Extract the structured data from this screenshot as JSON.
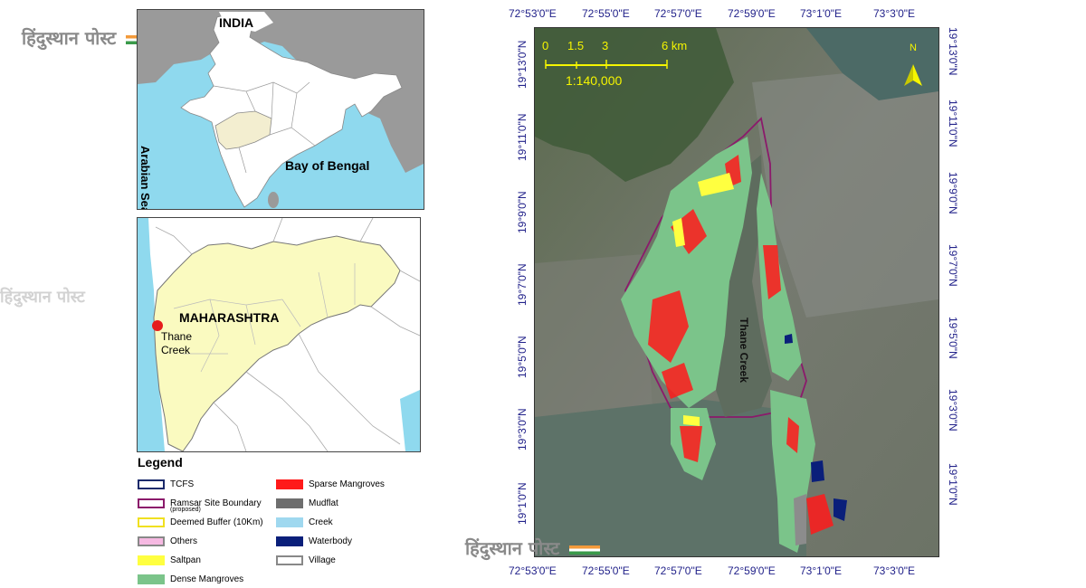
{
  "brand": {
    "watermark_text": "हिंदुस्थान पोस्ट"
  },
  "india_map": {
    "country_label": "INDIA",
    "sea_left_label": "Arabian Sea",
    "sea_right_label": "Bay of Bengal"
  },
  "state_map": {
    "state_label": "MAHARASHTRA",
    "site_label_line1": "Thane",
    "site_label_line2": "Creek"
  },
  "legend": {
    "title": "Legend",
    "items": [
      {
        "label": "TCFS",
        "color": "#ffffff",
        "border": "#1b2a6b"
      },
      {
        "label": "Ramsar Site Boundary",
        "sublabel": "(proposed)",
        "color": "#ffffff",
        "border": "#8b1a6b"
      },
      {
        "label": "Deemed Buffer (10Km)",
        "color": "#ffffff",
        "border": "#f0e020"
      },
      {
        "label": "Others",
        "color": "#f6b9e2",
        "border": "#888888"
      },
      {
        "label": "Saltpan",
        "color": "#ffff40",
        "border": "#ffff40"
      },
      {
        "label": "Dense Mangroves",
        "color": "#7bc48a",
        "border": "#7bc48a"
      },
      {
        "label": "Sparse Mangroves",
        "color": "#ff1a1a",
        "border": "#ff1a1a"
      },
      {
        "label": "Mudflat",
        "color": "#6e6e6e",
        "border": "#6e6e6e"
      },
      {
        "label": "Creek",
        "color": "#9fd8ef",
        "border": "#9fd8ef"
      },
      {
        "label": "Waterbody",
        "color": "#0a1f7a",
        "border": "#0a1f7a"
      },
      {
        "label": "Village",
        "color": "#ffffff",
        "border": "#888888"
      }
    ]
  },
  "main_map": {
    "scale_ticks": [
      "0",
      "1.5",
      "3",
      "6 km"
    ],
    "scale_ratio": "1:140,000",
    "north_label": "N",
    "creek_label": "Thane Creek",
    "lon_ticks": [
      "72°53'0\"E",
      "72°55'0\"E",
      "72°57'0\"E",
      "72°59'0\"E",
      "73°1'0\"E",
      "73°3'0\"E"
    ],
    "lat_ticks": [
      "19°13'0\"N",
      "19°11'0\"N",
      "19°9'0\"N",
      "19°7'0\"N",
      "19°5'0\"N",
      "19°3'0\"N",
      "19°1'0\"N"
    ]
  },
  "colors": {
    "sea": "#8fd9ee",
    "land": "#ffffff",
    "grey_land": "#9a9a9a",
    "state_fill": "#fafac0",
    "highlight": "#fff5d6",
    "mangrove": "#7bc48a",
    "sparse": "#ff1a1a",
    "coord_text": "#22228a",
    "scale": "#f5f500"
  }
}
